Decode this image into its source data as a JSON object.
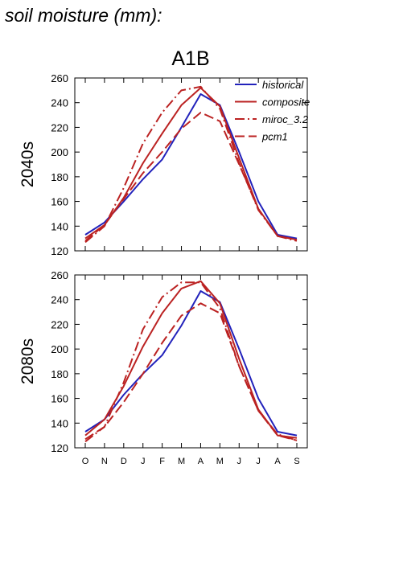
{
  "header": {
    "title": "soil moisture (mm):"
  },
  "scenario_title": "A1B",
  "colors": {
    "historical": "#2222bb",
    "composite": "#bb2222",
    "miroc_3.2": "#bb2222",
    "pcm1": "#bb2222"
  },
  "chart_data": [
    {
      "type": "line",
      "title": "",
      "row_label": "2040s",
      "xlabel": "",
      "ylabel": "",
      "categories": [
        "O",
        "N",
        "D",
        "J",
        "F",
        "M",
        "A",
        "M",
        "J",
        "J",
        "A",
        "S"
      ],
      "ylim": [
        120,
        260
      ],
      "yticks": [
        "120",
        "140",
        "160",
        "180",
        "200",
        "220",
        "240",
        "260"
      ],
      "grid": false,
      "legend_position": "top-right",
      "series": [
        {
          "name": "historical",
          "style": "solid",
          "color": "#2222bb",
          "values": [
            133,
            143,
            160,
            178,
            194,
            220,
            247,
            238,
            200,
            160,
            133,
            130
          ]
        },
        {
          "name": "composite",
          "style": "solid",
          "color": "#bb2222",
          "values": [
            130,
            141,
            163,
            191,
            215,
            238,
            252,
            237,
            195,
            154,
            132,
            129
          ]
        },
        {
          "name": "miroc_3.2",
          "style": "dashdot",
          "color": "#bb2222",
          "values": [
            127,
            140,
            171,
            207,
            232,
            250,
            253,
            235,
            191,
            153,
            132,
            128
          ]
        },
        {
          "name": "pcm1",
          "style": "dashed",
          "color": "#bb2222",
          "values": [
            128,
            141,
            162,
            183,
            200,
            219,
            232,
            225,
            190,
            154,
            132,
            129
          ]
        }
      ]
    },
    {
      "type": "line",
      "title": "",
      "row_label": "2080s",
      "xlabel": "",
      "ylabel": "",
      "categories": [
        "O",
        "N",
        "D",
        "J",
        "F",
        "M",
        "A",
        "M",
        "J",
        "J",
        "A",
        "S"
      ],
      "ylim": [
        120,
        260
      ],
      "yticks": [
        "120",
        "140",
        "160",
        "180",
        "200",
        "220",
        "240",
        "260"
      ],
      "grid": false,
      "legend_position": "none",
      "series": [
        {
          "name": "historical",
          "style": "solid",
          "color": "#2222bb",
          "values": [
            133,
            143,
            163,
            180,
            195,
            219,
            247,
            238,
            200,
            160,
            133,
            130
          ]
        },
        {
          "name": "composite",
          "style": "solid",
          "color": "#bb2222",
          "values": [
            130,
            143,
            170,
            202,
            229,
            249,
            255,
            237,
            192,
            151,
            130,
            128
          ]
        },
        {
          "name": "miroc_3.2",
          "style": "dashdot",
          "color": "#bb2222",
          "values": [
            125,
            137,
            173,
            216,
            242,
            254,
            254,
            233,
            186,
            150,
            131,
            126
          ]
        },
        {
          "name": "pcm1",
          "style": "dashed",
          "color": "#bb2222",
          "values": [
            127,
            137,
            157,
            180,
            205,
            227,
            237,
            229,
            186,
            150,
            130,
            126
          ]
        }
      ]
    }
  ]
}
